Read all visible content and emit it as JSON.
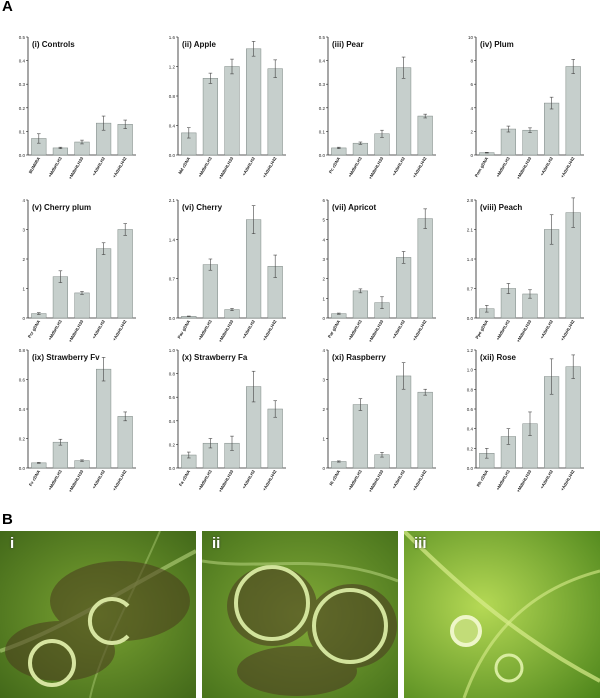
{
  "panel_a_label": "A",
  "panel_b_label": "B",
  "chart_data": [
    {
      "type": "bar",
      "title": "(i) Controls",
      "categories": [
        "BUMIIRA",
        "+MdbHLH3",
        "+MdbHLH33",
        "+AtbHLH2",
        "+AtbHLH42"
      ],
      "values": [
        0.07,
        0.03,
        0.055,
        0.135,
        0.13
      ],
      "errors": [
        0.02,
        0.003,
        0.008,
        0.03,
        0.018
      ],
      "ylim": [
        0,
        0.5
      ],
      "yticks": [
        0,
        0.1,
        0.2,
        0.3,
        0.4,
        0.5
      ],
      "ytick_labels": [
        "0.0",
        "0.1",
        "0.2",
        "0.3",
        "0.4",
        "0.5"
      ]
    },
    {
      "type": "bar",
      "title": "(ii) Apple",
      "categories": [
        "Md cDNA",
        "+MdbHLH3",
        "+MdbHLH33",
        "+AtbHLH2",
        "+AtbHLH42"
      ],
      "values": [
        0.3,
        1.04,
        1.2,
        1.44,
        1.17
      ],
      "errors": [
        0.07,
        0.07,
        0.1,
        0.1,
        0.12
      ],
      "ylim": [
        0,
        1.6
      ],
      "yticks": [
        0,
        0.4,
        0.8,
        1.2,
        1.6
      ],
      "ytick_labels": [
        "0.0",
        "0.4",
        "0.8",
        "1.2",
        "1.6"
      ]
    },
    {
      "type": "bar",
      "title": "(iii) Pear",
      "categories": [
        "Pc cDNA",
        "+MdbHLH3",
        "+MdbHLH33",
        "+AtbHLH2",
        "+AtbHLH42"
      ],
      "values": [
        0.03,
        0.05,
        0.09,
        0.37,
        0.165
      ],
      "errors": [
        0.003,
        0.005,
        0.015,
        0.045,
        0.008
      ],
      "ylim": [
        0,
        0.5
      ],
      "yticks": [
        0,
        0.1,
        0.2,
        0.3,
        0.4,
        0.5
      ],
      "ytick_labels": [
        "0.0",
        "0.1",
        "0.2",
        "0.3",
        "0.4",
        "0.5"
      ]
    },
    {
      "type": "bar",
      "title": "(iv) Plum",
      "categories": [
        "Pom gDNA",
        "+MdbHLH3",
        "+MdbHLH33",
        "+AtbHLH2",
        "+AtbHLH42"
      ],
      "values": [
        0.2,
        2.2,
        2.1,
        4.4,
        7.5
      ],
      "errors": [
        0.03,
        0.25,
        0.2,
        0.5,
        0.6
      ],
      "ylim": [
        0,
        10
      ],
      "yticks": [
        0,
        2,
        4,
        6,
        8,
        10
      ],
      "ytick_labels": [
        "0",
        "2",
        "4",
        "6",
        "8",
        "10"
      ]
    },
    {
      "type": "bar",
      "title": "(v) Cherry plum",
      "categories": [
        "Pcr gDNA",
        "+MdbHLH3",
        "+MdbHLH33",
        "+AtbHLH2",
        "+AtbHLH42"
      ],
      "values": [
        0.15,
        1.4,
        0.85,
        2.35,
        3.0
      ],
      "errors": [
        0.03,
        0.2,
        0.05,
        0.2,
        0.2
      ],
      "ylim": [
        0,
        4
      ],
      "yticks": [
        0,
        1,
        2,
        3,
        4
      ],
      "ytick_labels": [
        "0",
        "1",
        "2",
        "3",
        "4"
      ]
    },
    {
      "type": "bar",
      "title": "(vi) Cherry",
      "categories": [
        "Pav gDNA",
        "+MdbHLH3",
        "+MdbHLH33",
        "+AtbHLH2",
        "+AtbHLH42"
      ],
      "values": [
        0.03,
        0.95,
        0.15,
        1.75,
        0.92
      ],
      "errors": [
        0.005,
        0.1,
        0.02,
        0.25,
        0.2
      ],
      "ylim": [
        0,
        2.1
      ],
      "yticks": [
        0,
        0.7,
        1.4,
        2.1
      ],
      "ytick_labels": [
        "0.0",
        "0.7",
        "1.4",
        "2.1"
      ]
    },
    {
      "type": "bar",
      "title": "(vii) Apricot",
      "categories": [
        "Par gDNA",
        "+MdbHLH3",
        "+MdbHLH33",
        "+AtbHLH2",
        "+AtbHLH42"
      ],
      "values": [
        0.22,
        1.38,
        0.78,
        3.08,
        5.05
      ],
      "errors": [
        0.03,
        0.1,
        0.3,
        0.3,
        0.5
      ],
      "ylim": [
        0,
        6
      ],
      "yticks": [
        0,
        1,
        2,
        3,
        4,
        5,
        6
      ],
      "ytick_labels": [
        "0",
        "1",
        "2",
        "3",
        "4",
        "5",
        "6"
      ]
    },
    {
      "type": "bar",
      "title": "(viii) Peach",
      "categories": [
        "Ppe gDNA",
        "+MdbHLH3",
        "+MdbHLH33",
        "+AtbHLH2",
        "+AtbHLH42"
      ],
      "values": [
        0.22,
        0.7,
        0.57,
        2.1,
        2.5
      ],
      "errors": [
        0.08,
        0.12,
        0.1,
        0.35,
        0.35
      ],
      "ylim": [
        0,
        2.8
      ],
      "yticks": [
        0,
        0.7,
        1.4,
        2.1,
        2.8
      ],
      "ytick_labels": [
        "0.0",
        "0.7",
        "1.4",
        "2.1",
        "2.8"
      ]
    },
    {
      "type": "bar",
      "title": "(ix) Strawberry Fv",
      "categories": [
        "Fv cDNA",
        "+MdbHLH3",
        "+MdbHLH33",
        "+AtbHLH2",
        "+AtbHLH42"
      ],
      "values": [
        0.035,
        0.175,
        0.05,
        0.67,
        0.35
      ],
      "errors": [
        0.003,
        0.02,
        0.005,
        0.08,
        0.03
      ],
      "ylim": [
        0,
        0.8
      ],
      "yticks": [
        0,
        0.2,
        0.4,
        0.6,
        0.8
      ],
      "ytick_labels": [
        "0.0",
        "0.2",
        "0.4",
        "0.6",
        "0.8"
      ]
    },
    {
      "type": "bar",
      "title": "(x) Strawberry Fa",
      "categories": [
        "Fa cDNA",
        "+MdbHLH3",
        "+MdbHLH33",
        "+AtbHLH2",
        "+AtbHLH42"
      ],
      "values": [
        0.11,
        0.21,
        0.21,
        0.69,
        0.5
      ],
      "errors": [
        0.025,
        0.04,
        0.06,
        0.13,
        0.07
      ],
      "ylim": [
        0,
        1.0
      ],
      "yticks": [
        0,
        0.2,
        0.4,
        0.6,
        0.8,
        1.0
      ],
      "ytick_labels": [
        "0.0",
        "0.2",
        "0.4",
        "0.6",
        "0.8",
        "1.0"
      ]
    },
    {
      "type": "bar",
      "title": "(xi) Raspberry",
      "categories": [
        "Ri cDNA",
        "+MdbHLH3",
        "+MdbHLH33",
        "+AtbHLH2",
        "+AtbHLH42"
      ],
      "values": [
        0.22,
        2.15,
        0.45,
        3.12,
        2.57
      ],
      "errors": [
        0.02,
        0.2,
        0.08,
        0.45,
        0.1
      ],
      "ylim": [
        0,
        4
      ],
      "yticks": [
        0,
        1,
        2,
        3,
        4
      ],
      "ytick_labels": [
        "0",
        "1",
        "2",
        "3",
        "4"
      ]
    },
    {
      "type": "bar",
      "title": "(xii) Rose",
      "categories": [
        "Rh cDNA",
        "+MdbHLH3",
        "+MdbHLH33",
        "+AtbHLH2",
        "+AtbHLH42"
      ],
      "values": [
        0.15,
        0.32,
        0.45,
        0.93,
        1.03
      ],
      "errors": [
        0.05,
        0.08,
        0.12,
        0.18,
        0.12
      ],
      "ylim": [
        0,
        1.2
      ],
      "yticks": [
        0,
        0.2,
        0.4,
        0.6,
        0.8,
        1.0,
        1.2
      ],
      "ytick_labels": [
        "0.0",
        "0.2",
        "0.4",
        "0.6",
        "0.8",
        "1.0",
        "1.2"
      ]
    }
  ],
  "photos": [
    {
      "label": "i",
      "leaf_color": "#5f8a25",
      "spot_color": "#4a3a1e"
    },
    {
      "label": "ii",
      "leaf_color": "#6a9428",
      "spot_color": "#4d3f22"
    },
    {
      "label": "iii",
      "leaf_color": "#8fbf35",
      "spot_color": "#c9dc8a"
    }
  ],
  "colors": {
    "bar_fill": "#c6cfcc",
    "bar_stroke": "#7d8784",
    "axis": "#222222"
  }
}
